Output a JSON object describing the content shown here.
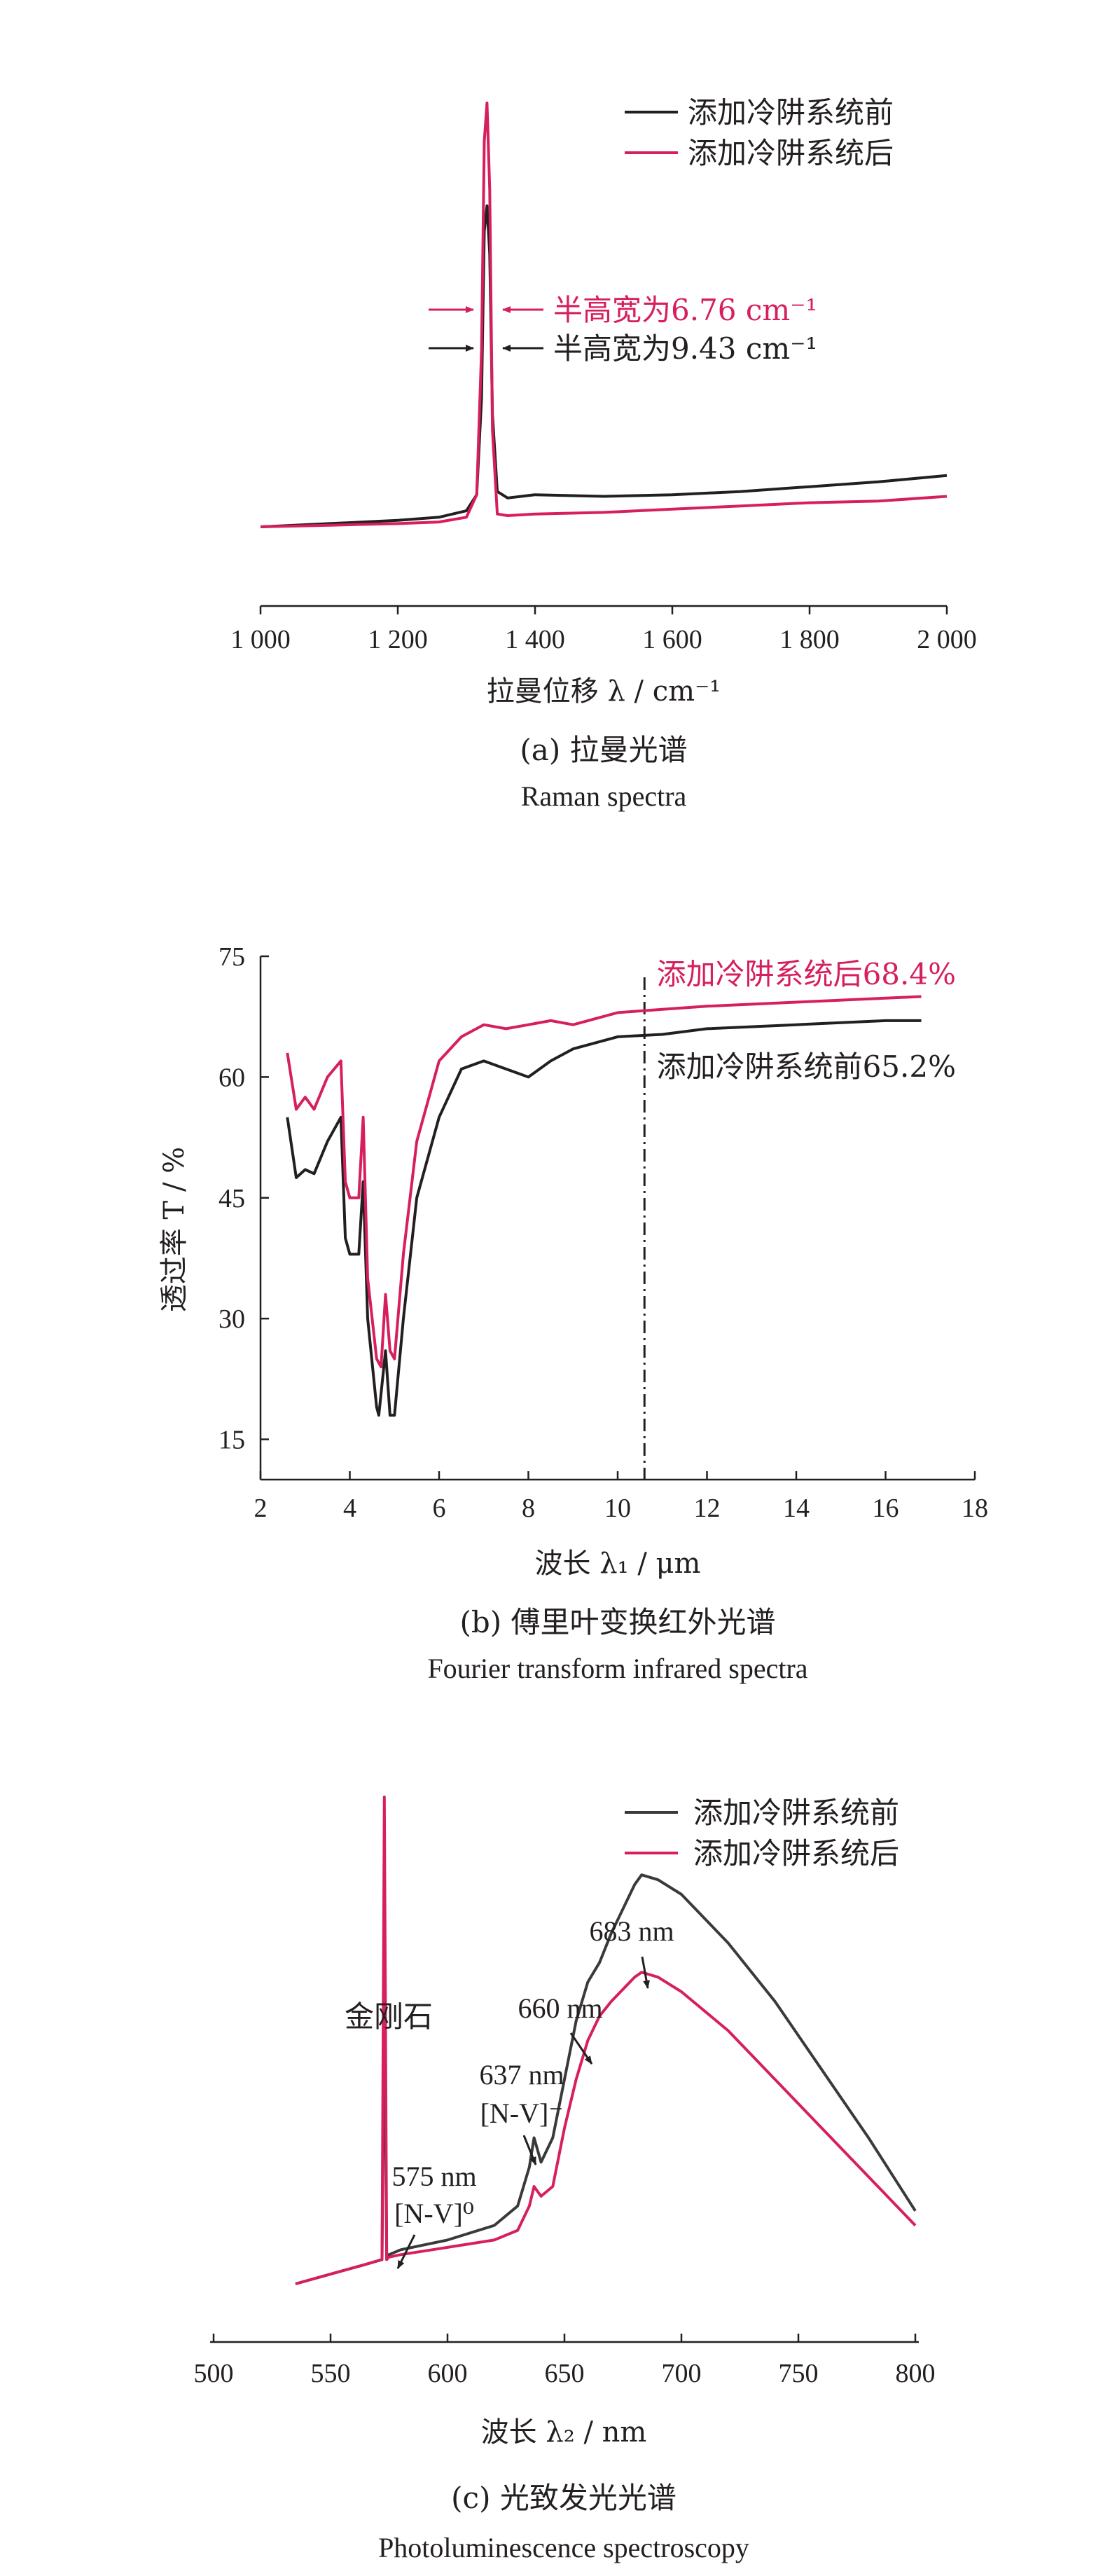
{
  "chart_data": [
    {
      "type": "line",
      "panel": "a",
      "xlabel": "拉曼位移 λ / cm⁻¹",
      "ylabel": "",
      "xlim": [
        1000,
        2000
      ],
      "xticks": [
        "1 000",
        "1 200",
        "1 400",
        "1 600",
        "1 800",
        "2 000"
      ],
      "caption": "(a) 拉曼光谱",
      "caption_en": "Raman spectra",
      "series": [
        {
          "name": "添加冷阱系统前",
          "color": "#231f20",
          "x": [
            1000,
            1100,
            1200,
            1260,
            1300,
            1315,
            1322,
            1326,
            1330,
            1334,
            1338,
            1345,
            1360,
            1400,
            1500,
            1600,
            1700,
            1800,
            1900,
            2000
          ],
          "y": [
            0.0,
            0.01,
            0.02,
            0.03,
            0.05,
            0.1,
            0.4,
            0.92,
            1.0,
            0.85,
            0.35,
            0.11,
            0.09,
            0.1,
            0.095,
            0.1,
            0.11,
            0.125,
            0.14,
            0.16
          ]
        },
        {
          "name": "添加冷阱系统后",
          "color": "#d61f5c",
          "x": [
            1000,
            1100,
            1200,
            1260,
            1300,
            1315,
            1322,
            1326,
            1330,
            1334,
            1338,
            1345,
            1360,
            1400,
            1500,
            1600,
            1700,
            1800,
            1900,
            2000
          ],
          "y": [
            0.0,
            0.005,
            0.01,
            0.015,
            0.03,
            0.1,
            0.55,
            1.2,
            1.32,
            1.05,
            0.3,
            0.04,
            0.035,
            0.04,
            0.045,
            0.055,
            0.065,
            0.075,
            0.08,
            0.095
          ]
        }
      ],
      "annotations": [
        "半高宽为6.76 cm⁻¹",
        "半高宽为9.43 cm⁻¹"
      ],
      "legend_position": "top-right"
    },
    {
      "type": "line",
      "panel": "b",
      "xlabel": "波长 λ₁ / μm",
      "ylabel": "透过率 T / %",
      "xlim": [
        2,
        18
      ],
      "ylim": [
        10,
        75
      ],
      "xticks": [
        "2",
        "4",
        "6",
        "8",
        "10",
        "12",
        "14",
        "16",
        "18"
      ],
      "yticks": [
        "15",
        "30",
        "45",
        "60",
        "75"
      ],
      "caption": "(b) 傅里叶变换红外光谱",
      "caption_en": "Fourier transform infrared spectra",
      "marker_x": 10.6,
      "series": [
        {
          "name": "添加冷阱系统前",
          "color": "#231f20",
          "x": [
            2.6,
            2.8,
            3.0,
            3.2,
            3.5,
            3.8,
            3.9,
            4.0,
            4.2,
            4.3,
            4.4,
            4.6,
            4.65,
            4.8,
            4.9,
            5.0,
            5.2,
            5.5,
            6.0,
            6.5,
            7.0,
            7.5,
            8.0,
            8.5,
            9.0,
            10.0,
            11.0,
            12.0,
            14.0,
            16.0,
            16.8
          ],
          "y": [
            55,
            47.5,
            48.5,
            48,
            52,
            55,
            40,
            38,
            38,
            47,
            30,
            19,
            18,
            26,
            18,
            18,
            30,
            45,
            55,
            61,
            62,
            61,
            60,
            62,
            63.5,
            65,
            65.3,
            66,
            66.5,
            67,
            67
          ]
        },
        {
          "name": "添加冷阱系统后",
          "color": "#d61f5c",
          "x": [
            2.6,
            2.8,
            3.0,
            3.2,
            3.5,
            3.8,
            3.9,
            4.0,
            4.2,
            4.3,
            4.4,
            4.6,
            4.7,
            4.8,
            4.9,
            5.0,
            5.2,
            5.5,
            6.0,
            6.5,
            7.0,
            7.5,
            8.0,
            8.5,
            9.0,
            10.0,
            11.0,
            12.0,
            14.0,
            16.0,
            16.8
          ],
          "y": [
            63,
            56,
            57.5,
            56,
            60,
            62,
            47,
            45,
            45,
            55,
            35,
            25,
            24,
            33,
            26,
            25,
            38,
            52,
            62,
            65,
            66.5,
            66,
            66.5,
            67,
            66.5,
            68,
            68.4,
            68.8,
            69.3,
            69.8,
            70
          ]
        }
      ],
      "annotations": [
        "添加冷阱系统后68.4%",
        "添加冷阱系统前65.2%"
      ]
    },
    {
      "type": "line",
      "panel": "c",
      "xlabel": "波长 λ₂ / nm",
      "ylabel": "",
      "xlim": [
        500,
        800
      ],
      "xticks": [
        "500",
        "550",
        "600",
        "650",
        "700",
        "750",
        "800"
      ],
      "caption": "(c) 光致发光光谱",
      "caption_en": "Photoluminescence spectroscopy",
      "series": [
        {
          "name": "添加冷阱系统前",
          "color": "#3a3a3a",
          "x": [
            535,
            550,
            565,
            572,
            573,
            574,
            575,
            580,
            600,
            620,
            630,
            635,
            637,
            640,
            645,
            650,
            655,
            660,
            665,
            670,
            680,
            683,
            690,
            700,
            720,
            740,
            760,
            780,
            800
          ],
          "y": [
            0.0,
            0.02,
            0.04,
            0.05,
            0.6,
            0.05,
            0.06,
            0.07,
            0.09,
            0.12,
            0.16,
            0.24,
            0.3,
            0.25,
            0.3,
            0.42,
            0.54,
            0.62,
            0.66,
            0.72,
            0.82,
            0.84,
            0.83,
            0.8,
            0.7,
            0.58,
            0.44,
            0.3,
            0.15
          ]
        },
        {
          "name": "添加冷阱系统后",
          "color": "#d61f5c",
          "x": [
            535,
            550,
            565,
            572,
            573,
            574,
            575,
            580,
            600,
            620,
            630,
            635,
            637,
            640,
            645,
            650,
            655,
            660,
            665,
            670,
            680,
            683,
            690,
            700,
            720,
            740,
            760,
            780,
            800
          ],
          "y": [
            0.0,
            0.02,
            0.04,
            0.05,
            1.0,
            0.05,
            0.055,
            0.06,
            0.075,
            0.09,
            0.11,
            0.16,
            0.2,
            0.18,
            0.2,
            0.32,
            0.42,
            0.5,
            0.55,
            0.58,
            0.63,
            0.64,
            0.63,
            0.6,
            0.52,
            0.42,
            0.32,
            0.22,
            0.12
          ]
        }
      ],
      "annotations": [
        "金刚石",
        "683 nm",
        "660 nm",
        "637 nm",
        "[N-V]⁻",
        "575 nm",
        "[N-V]⁰"
      ],
      "legend_position": "top-right"
    }
  ]
}
